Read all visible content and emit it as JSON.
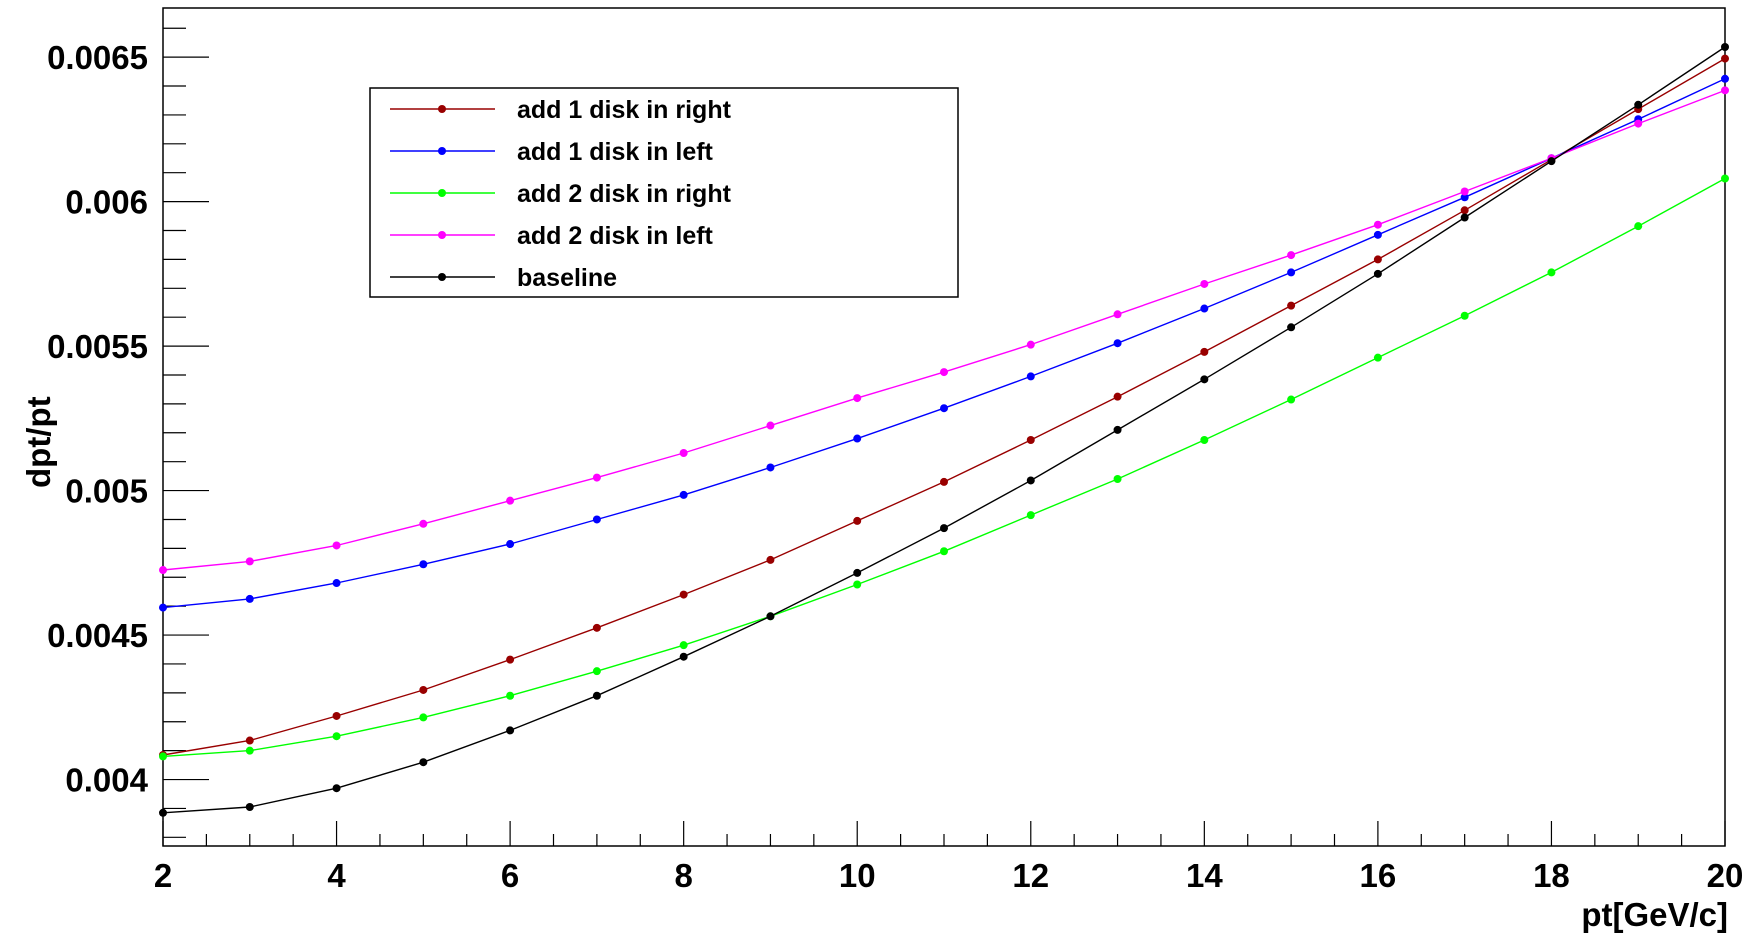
{
  "chart_data": {
    "type": "line",
    "title": "",
    "xlabel": "pt[GeV/c]",
    "ylabel": "dpt/pt",
    "xlim": [
      2,
      20
    ],
    "ylim": [
      0.00377,
      0.00667
    ],
    "x_ticks": [
      2,
      4,
      6,
      8,
      10,
      12,
      14,
      16,
      18,
      20
    ],
    "x_tick_labels": [
      "2",
      "4",
      "6",
      "8",
      "10",
      "12",
      "14",
      "16",
      "18",
      "20"
    ],
    "y_ticks": [
      0.004,
      0.0045,
      0.005,
      0.0055,
      0.006,
      0.0065
    ],
    "y_tick_labels": [
      "0.004",
      "0.0045",
      "0.005",
      "0.0055",
      "0.006",
      "0.0065"
    ],
    "grid": false,
    "legend_position": "top-left",
    "x": [
      2,
      3,
      4,
      5,
      6,
      7,
      8,
      9,
      10,
      11,
      12,
      13,
      14,
      15,
      16,
      17,
      18,
      19,
      20
    ],
    "series": [
      {
        "name": "add 1 disk in right",
        "color": "#990000",
        "values": [
          0.004085,
          0.004135,
          0.00422,
          0.00431,
          0.004415,
          0.004525,
          0.00464,
          0.00476,
          0.004895,
          0.00503,
          0.005175,
          0.005325,
          0.00548,
          0.00564,
          0.0058,
          0.00597,
          0.006145,
          0.00632,
          0.006495
        ]
      },
      {
        "name": "add 1 disk in left",
        "color": "#0000ff",
        "values": [
          0.004595,
          0.004625,
          0.00468,
          0.004745,
          0.004815,
          0.0049,
          0.004985,
          0.00508,
          0.00518,
          0.005285,
          0.005395,
          0.00551,
          0.00563,
          0.005755,
          0.005885,
          0.006015,
          0.00615,
          0.006285,
          0.006425
        ]
      },
      {
        "name": "add 2 disk in right",
        "color": "#00ff00",
        "values": [
          0.00408,
          0.0041,
          0.00415,
          0.004215,
          0.00429,
          0.004375,
          0.004465,
          0.004565,
          0.004675,
          0.00479,
          0.004915,
          0.00504,
          0.005175,
          0.005315,
          0.00546,
          0.005605,
          0.005755,
          0.005915,
          0.00608
        ]
      },
      {
        "name": "add 2 disk in left",
        "color": "#ff00ff",
        "values": [
          0.004725,
          0.004755,
          0.00481,
          0.004885,
          0.004965,
          0.005045,
          0.00513,
          0.005225,
          0.00532,
          0.00541,
          0.005505,
          0.00561,
          0.005715,
          0.005815,
          0.00592,
          0.006035,
          0.00615,
          0.00627,
          0.006385
        ]
      },
      {
        "name": "baseline",
        "color": "#000000",
        "values": [
          0.003885,
          0.003905,
          0.00397,
          0.00406,
          0.00417,
          0.00429,
          0.004425,
          0.004565,
          0.004715,
          0.00487,
          0.005035,
          0.00521,
          0.005385,
          0.005565,
          0.00575,
          0.005945,
          0.00614,
          0.006335,
          0.006535
        ]
      }
    ]
  }
}
